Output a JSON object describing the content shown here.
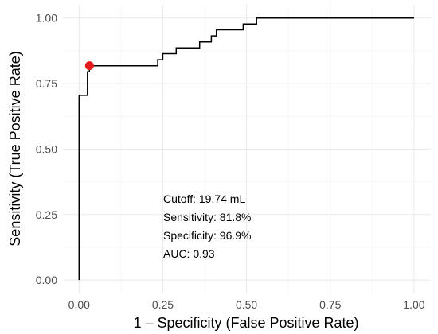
{
  "chart_data": {
    "type": "line",
    "xlabel": "1 – Specificity (False Positive Rate)",
    "ylabel": "Sensitivity (True Positive Rate)",
    "xlim": [
      0,
      1
    ],
    "ylim": [
      0,
      1
    ],
    "x_ticks": [
      "0.00",
      "0.25",
      "0.50",
      "0.75",
      "1.00"
    ],
    "y_ticks": [
      "0.00",
      "0.25",
      "0.50",
      "0.75",
      "1.00"
    ],
    "grid": true,
    "series": [
      {
        "color": "#000000",
        "points": [
          [
            0.0,
            0.0
          ],
          [
            0.0,
            0.705
          ],
          [
            0.025,
            0.705
          ],
          [
            0.025,
            0.795
          ],
          [
            0.031,
            0.795
          ],
          [
            0.031,
            0.818
          ],
          [
            0.235,
            0.818
          ],
          [
            0.235,
            0.841
          ],
          [
            0.25,
            0.841
          ],
          [
            0.25,
            0.864
          ],
          [
            0.29,
            0.864
          ],
          [
            0.29,
            0.886
          ],
          [
            0.36,
            0.886
          ],
          [
            0.36,
            0.909
          ],
          [
            0.395,
            0.909
          ],
          [
            0.395,
            0.932
          ],
          [
            0.41,
            0.932
          ],
          [
            0.41,
            0.955
          ],
          [
            0.49,
            0.955
          ],
          [
            0.49,
            0.977
          ],
          [
            0.53,
            0.977
          ],
          [
            0.53,
            1.0
          ],
          [
            1.0,
            1.0
          ]
        ]
      }
    ],
    "highlight_point": {
      "x": 0.031,
      "y": 0.818,
      "color": "#e41a1c"
    },
    "annotations": [
      "Cutoff: 19.74 mL",
      "Sensitivity: 81.8%",
      "Specificity: 96.9%",
      "AUC: 0.93"
    ]
  }
}
